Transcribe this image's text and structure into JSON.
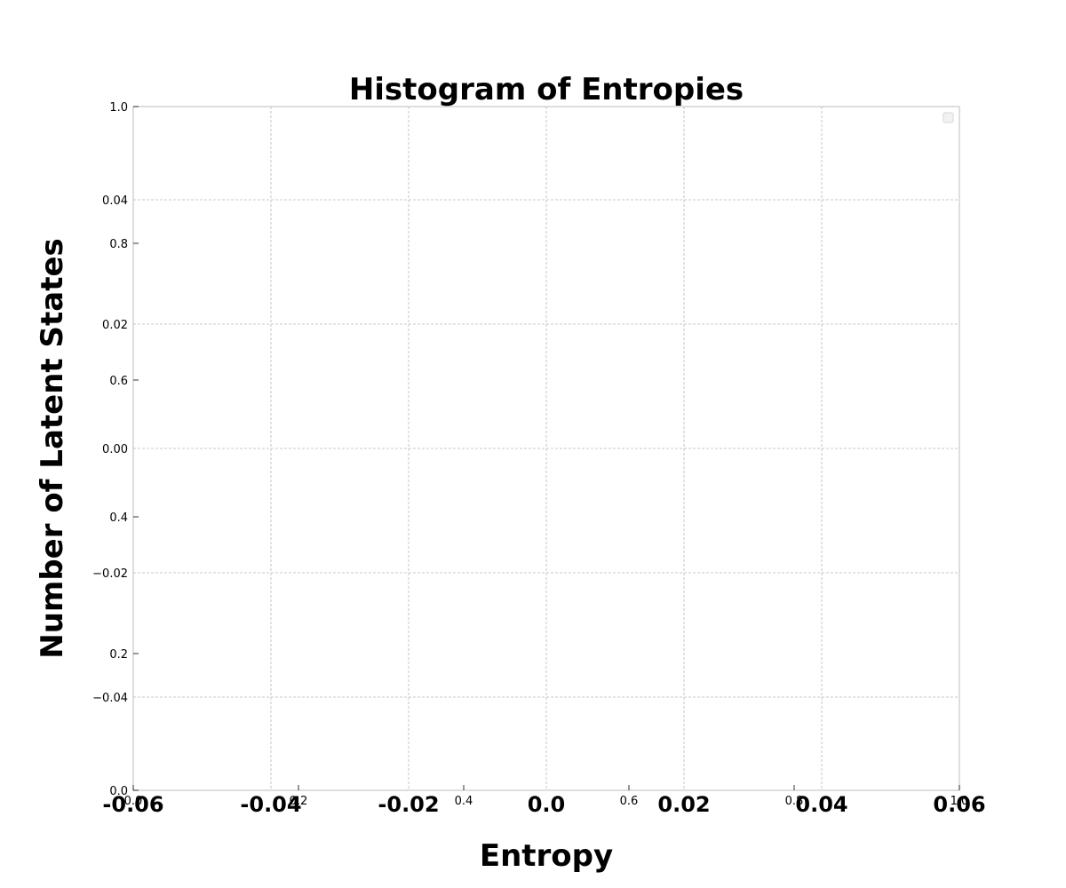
{
  "chart_data": {
    "type": "bar",
    "title": "Histogram of Entropies",
    "xlabel": "Entropy",
    "ylabel": "Number of Latent States",
    "grid": true,
    "legend": {
      "position": "top-right",
      "entries": []
    },
    "series": [],
    "axes": {
      "primary": {
        "xlim": [
          0.0,
          1.0
        ],
        "ylim": [
          0.0,
          1.0
        ],
        "xticks": [
          0.0,
          0.2,
          0.4,
          0.6,
          0.8,
          1.0
        ],
        "xtick_labels": [
          "0.0",
          "0.2",
          "0.4",
          "0.6",
          "0.8",
          "1.0"
        ],
        "yticks": [
          0.0,
          0.2,
          0.4,
          0.6,
          0.8,
          1.0
        ],
        "ytick_labels": [
          "0.0",
          "0.2",
          "0.4",
          "0.6",
          "0.8",
          "1.0"
        ]
      },
      "secondary": {
        "xlim": [
          -0.06,
          0.06
        ],
        "ylim": [
          -0.055,
          0.055
        ],
        "xticks": [
          -0.06,
          -0.04,
          -0.02,
          0.0,
          0.02,
          0.04,
          0.06
        ],
        "xtick_labels": [
          "-0.06",
          "-0.04",
          "-0.02",
          "0.0",
          "0.02",
          "0.04",
          "0.06"
        ],
        "yticks": [
          -0.04,
          -0.02,
          0.0,
          0.02,
          0.04
        ],
        "ytick_labels": [
          "−0.04",
          "−0.02",
          "0.00",
          "0.02",
          "0.04"
        ]
      }
    }
  }
}
